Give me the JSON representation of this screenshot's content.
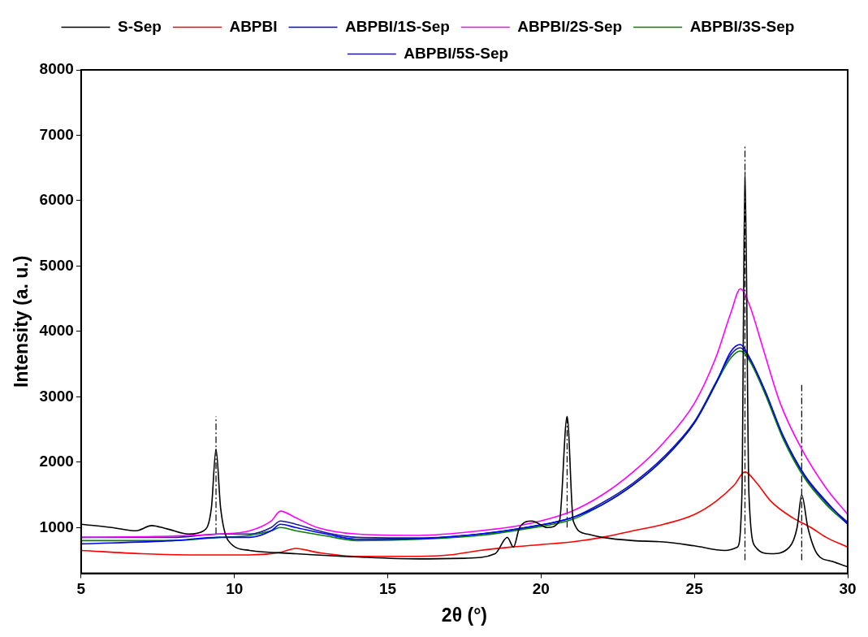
{
  "chart_data": {
    "type": "line",
    "x_label": "2θ (°)",
    "y_label": "Intensity (a. u.)",
    "xlim": [
      5,
      30
    ],
    "xticks": [
      5,
      10,
      15,
      20,
      25,
      30
    ],
    "ylim": [
      300,
      8000
    ],
    "yticks": [
      1000,
      2000,
      3000,
      4000,
      5000,
      6000,
      7000,
      8000
    ],
    "grid": false,
    "legend": "top",
    "series": [
      {
        "name": "S-Sep",
        "color": "#000000",
        "x": [
          5,
          6,
          6.8,
          7.3,
          7.8,
          8.5,
          9.0,
          9.25,
          9.4,
          9.55,
          9.8,
          10.5,
          12,
          14,
          16,
          17.5,
          18.5,
          18.9,
          19.1,
          19.3,
          19.7,
          20.2,
          20.6,
          20.85,
          21.05,
          21.5,
          22,
          23,
          24,
          25,
          26,
          26.4,
          26.55,
          26.65,
          26.78,
          27,
          27.5,
          28.1,
          28.35,
          28.5,
          28.7,
          29,
          29.5,
          30
        ],
        "values": [
          1050,
          1000,
          950,
          1030,
          980,
          900,
          950,
          1300,
          2200,
          1300,
          800,
          650,
          600,
          550,
          520,
          530,
          600,
          850,
          700,
          1000,
          1100,
          1000,
          1100,
          2700,
          1100,
          900,
          850,
          800,
          780,
          720,
          650,
          700,
          1500,
          6450,
          1500,
          700,
          600,
          700,
          1000,
          1500,
          1000,
          600,
          480,
          400
        ]
      },
      {
        "name": "ABPBI",
        "color": "#ff0000",
        "x": [
          5,
          7,
          9,
          10.5,
          11.5,
          12,
          12.7,
          14,
          16,
          17,
          18,
          19,
          20,
          21,
          22,
          23,
          24,
          25,
          25.7,
          26.3,
          26.65,
          27,
          27.5,
          28.2,
          28.8,
          29.3,
          30
        ],
        "values": [
          650,
          600,
          580,
          580,
          620,
          680,
          620,
          560,
          560,
          580,
          650,
          700,
          740,
          780,
          850,
          950,
          1050,
          1200,
          1400,
          1650,
          1850,
          1700,
          1400,
          1150,
          1000,
          850,
          700
        ]
      },
      {
        "name": "ABPBI/1S-Sep",
        "color": "#0000ff",
        "x": [
          5,
          8,
          9.5,
          10.5,
          11.2,
          11.5,
          12,
          13,
          14,
          16,
          18,
          19.5,
          21,
          22,
          23,
          24,
          25,
          25.7,
          26.2,
          26.5,
          26.8,
          27.3,
          27.9,
          28.6,
          29.3,
          30
        ],
        "values": [
          750,
          800,
          850,
          850,
          950,
          1050,
          1000,
          900,
          820,
          830,
          900,
          1000,
          1150,
          1350,
          1650,
          2050,
          2600,
          3200,
          3700,
          3800,
          3600,
          3100,
          2400,
          1800,
          1400,
          1050
        ]
      },
      {
        "name": "ABPBI/2S-Sep",
        "color": "#ff00ff",
        "x": [
          5,
          8,
          9.5,
          10.5,
          11.2,
          11.5,
          12,
          12.7,
          14,
          16,
          18,
          19.5,
          21,
          22,
          23,
          24,
          25,
          25.7,
          26.2,
          26.5,
          26.8,
          27.2,
          27.8,
          28.5,
          29.3,
          30
        ],
        "values": [
          850,
          870,
          900,
          950,
          1100,
          1250,
          1150,
          1000,
          900,
          880,
          950,
          1050,
          1250,
          1500,
          1850,
          2300,
          2900,
          3600,
          4300,
          4650,
          4400,
          3800,
          2900,
          2200,
          1600,
          1200
        ]
      },
      {
        "name": "ABPBI/3S-Sep",
        "color": "#008000",
        "x": [
          5,
          8,
          9.5,
          10.5,
          11.2,
          11.5,
          12,
          13,
          14,
          16,
          18,
          19.5,
          21,
          22,
          23,
          24,
          25,
          25.7,
          26.2,
          26.5,
          26.8,
          27.3,
          27.9,
          28.6,
          29.3,
          30
        ],
        "values": [
          800,
          800,
          850,
          880,
          950,
          1000,
          950,
          870,
          800,
          820,
          880,
          980,
          1120,
          1350,
          1650,
          2050,
          2600,
          3200,
          3600,
          3700,
          3550,
          3050,
          2350,
          1750,
          1350,
          1050
        ]
      },
      {
        "name": "ABPBI/5S-Sep",
        "color": "#1a1a9c",
        "x": [
          5,
          8,
          9.5,
          10.5,
          11.2,
          11.5,
          12,
          13,
          14,
          16,
          18,
          19.5,
          21,
          22,
          23,
          24,
          25,
          25.7,
          26.2,
          26.5,
          26.8,
          27.3,
          27.9,
          28.6,
          29.3,
          30
        ],
        "values": [
          850,
          850,
          900,
          900,
          1000,
          1100,
          1050,
          920,
          850,
          840,
          900,
          1000,
          1150,
          1380,
          1680,
          2080,
          2620,
          3220,
          3650,
          3750,
          3580,
          3080,
          2380,
          1780,
          1380,
          1080
        ]
      }
    ],
    "reference_lines": [
      {
        "x": 9.4,
        "y": [
          900,
          2700
        ],
        "line_style": "dashdot",
        "color": "#000000"
      },
      {
        "x": 20.85,
        "y": [
          1000,
          2700
        ],
        "line_style": "dashdot",
        "color": "#000000"
      },
      {
        "x": 26.65,
        "y": [
          500,
          6850
        ],
        "line_style": "dashdot",
        "color": "#000000"
      },
      {
        "x": 28.5,
        "y": [
          500,
          3180
        ],
        "line_style": "dashdot",
        "color": "#000000"
      }
    ]
  }
}
